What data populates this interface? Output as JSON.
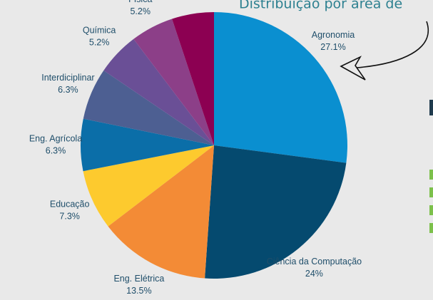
{
  "chart_data": {
    "type": "pie",
    "title": "Distribuição por área de",
    "categories": [
      "Agronomia",
      "Ciência da Computação",
      "Eng. Elétrica",
      "Educação",
      "Eng. Agrícola",
      "Interdiciplinar",
      "Química",
      "Física",
      null
    ],
    "values": [
      27.1,
      24,
      13.5,
      7.3,
      6.3,
      6.3,
      5.2,
      5.2,
      5.1
    ],
    "value_labels": [
      "27.1%",
      "24%",
      "13.5%",
      "7.3%",
      "6.3%",
      "6.3%",
      "5.2%",
      "5.2%",
      null
    ],
    "colors": [
      "#0a8fd0",
      "#054a6f",
      "#f38b36",
      "#fdca2e",
      "#0b6ea8",
      "#4d5f92",
      "#6a4f96",
      "#8c3f88",
      "#8c0052"
    ]
  }
}
